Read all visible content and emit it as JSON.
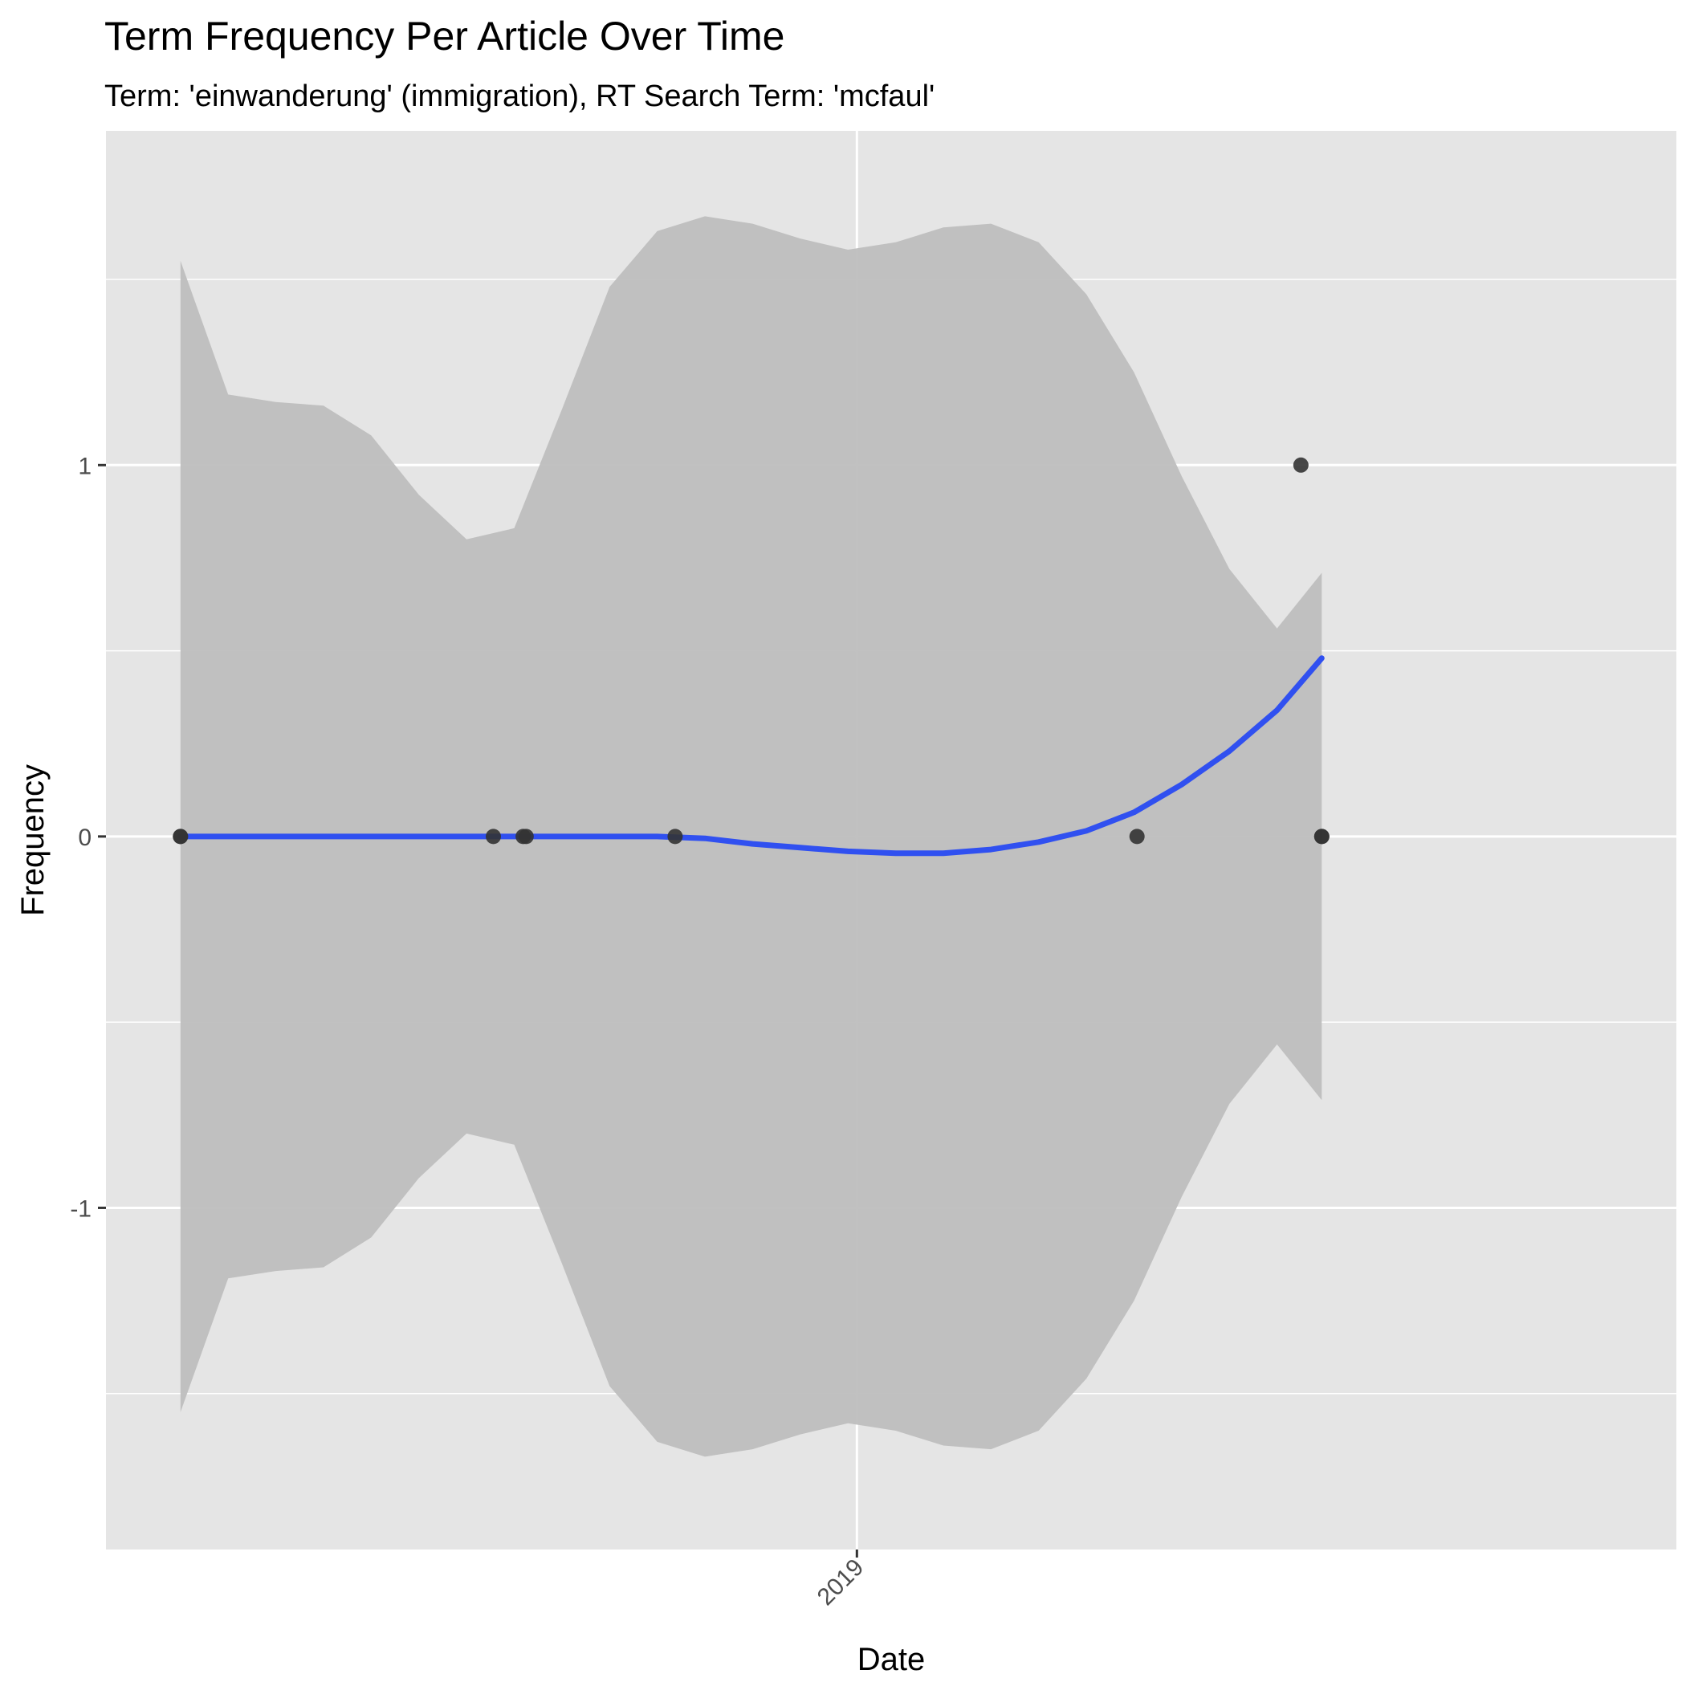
{
  "chart_data": {
    "type": "scatter",
    "title": "Term Frequency Per Article Over Time",
    "subtitle": "Term: 'einwanderung' (immigration), RT Search Term: 'mcfaul'",
    "xlabel": "Date",
    "ylabel": "Frequency",
    "x_scale": "date",
    "xlim": [
      "2018-04-24",
      "2019-10-03"
    ],
    "ylim": [
      -1.92,
      1.9
    ],
    "x_ticks": [
      {
        "value": "2019-01-01",
        "label": "2019"
      }
    ],
    "y_ticks": [
      {
        "value": -1,
        "label": "-1"
      },
      {
        "value": 0,
        "label": "0"
      },
      {
        "value": 1,
        "label": "1"
      }
    ],
    "y_minor_gridlines": [
      -1.5,
      -0.5,
      0.5,
      1.5
    ],
    "grid": true,
    "background": "#e5e5e5",
    "colors": {
      "panel_background": "#e5e5e5",
      "gridline": "#ffffff",
      "ribbon": "#bebebe",
      "smooth_line": "#3050f0",
      "points": "#333333"
    },
    "points": [
      {
        "x": "2018-05-19",
        "y": 0
      },
      {
        "x": "2018-05-19",
        "y": 0
      },
      {
        "x": "2018-09-01",
        "y": 0
      },
      {
        "x": "2018-09-11",
        "y": 0
      },
      {
        "x": "2018-09-12",
        "y": 0
      },
      {
        "x": "2018-11-01",
        "y": 0
      },
      {
        "x": "2019-04-05",
        "y": 0
      },
      {
        "x": "2019-05-30",
        "y": 1
      },
      {
        "x": "2019-06-06",
        "y": 0
      },
      {
        "x": "2019-06-06",
        "y": 0
      }
    ],
    "smooth": {
      "x": [
        "2018-05-19",
        "2018-06-04",
        "2018-06-20",
        "2018-07-06",
        "2018-07-22",
        "2018-08-07",
        "2018-08-23",
        "2018-09-08",
        "2018-09-24",
        "2018-10-10",
        "2018-10-26",
        "2018-11-11",
        "2018-11-27",
        "2018-12-13",
        "2018-12-29",
        "2019-01-14",
        "2019-01-30",
        "2019-02-15",
        "2019-03-03",
        "2019-03-19",
        "2019-04-04",
        "2019-04-20",
        "2019-05-06",
        "2019-05-22",
        "2019-06-06"
      ],
      "y": [
        0,
        0,
        0,
        0,
        0,
        0,
        0,
        0,
        0,
        0,
        0,
        -0.005,
        -0.02,
        -0.03,
        -0.04,
        -0.045,
        -0.045,
        -0.035,
        -0.015,
        0.015,
        0.065,
        0.14,
        0.23,
        0.34,
        0.48
      ],
      "lower": [
        -1.55,
        -1.19,
        -1.17,
        -1.16,
        -1.08,
        -0.92,
        -0.8,
        -0.83,
        -1.15,
        -1.48,
        -1.63,
        -1.67,
        -1.65,
        -1.61,
        -1.58,
        -1.6,
        -1.64,
        -1.65,
        -1.6,
        -1.46,
        -1.25,
        -0.97,
        -0.72,
        -0.56,
        -0.71
      ],
      "upper": [
        1.55,
        1.19,
        1.17,
        1.16,
        1.08,
        0.92,
        0.8,
        0.83,
        1.15,
        1.48,
        1.63,
        1.67,
        1.65,
        1.61,
        1.58,
        1.6,
        1.64,
        1.65,
        1.6,
        1.46,
        1.25,
        0.97,
        0.72,
        0.56,
        0.71
      ]
    }
  }
}
